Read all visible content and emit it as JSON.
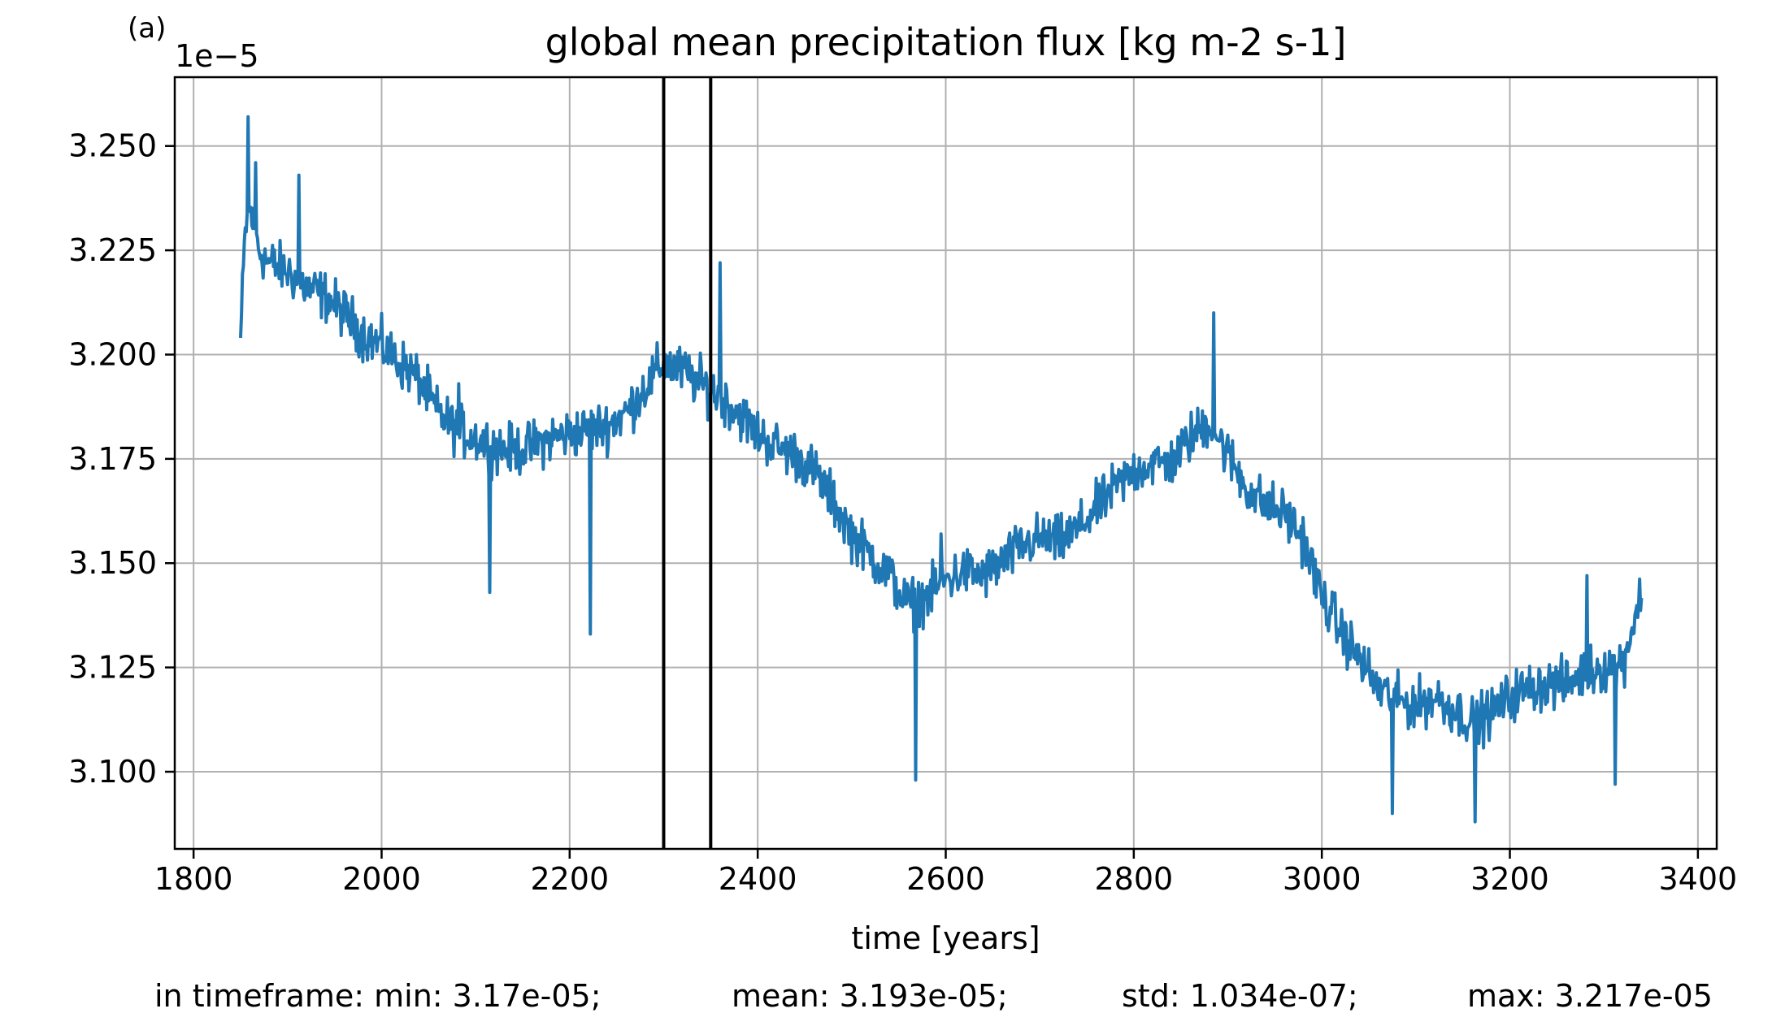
{
  "chart_data": {
    "type": "line",
    "panel_label": "(a)",
    "title": "global mean precipitation flux [kg m-2 s-1]",
    "xlabel": "time [years]",
    "ylabel": "",
    "y_offset_label": "1e−5",
    "xlim": [
      1780,
      3420
    ],
    "ylim": [
      3.0815,
      3.2665
    ],
    "xticks": [
      1800,
      2000,
      2200,
      2400,
      2600,
      2800,
      3000,
      3200,
      3400
    ],
    "yticks": [
      3.1,
      3.125,
      3.15,
      3.175,
      3.2,
      3.225,
      3.25
    ],
    "ytick_labels": [
      "3.100",
      "3.125",
      "3.150",
      "3.175",
      "3.200",
      "3.225",
      "3.250"
    ],
    "grid": true,
    "series_color": "#1f77b4",
    "vertical_markers": {
      "x": [
        2300,
        2350
      ],
      "color": "#000000"
    },
    "series": [
      {
        "name": "",
        "x_start": 1850,
        "x_end": 3340,
        "anchors": [
          [
            1850,
            3.204
          ],
          [
            1855,
            3.23
          ],
          [
            1860,
            3.235
          ],
          [
            1870,
            3.225
          ],
          [
            1880,
            3.222
          ],
          [
            1900,
            3.22
          ],
          [
            1920,
            3.216
          ],
          [
            1940,
            3.214
          ],
          [
            1960,
            3.21
          ],
          [
            1980,
            3.205
          ],
          [
            2000,
            3.202
          ],
          [
            2020,
            3.198
          ],
          [
            2040,
            3.194
          ],
          [
            2060,
            3.186
          ],
          [
            2080,
            3.182
          ],
          [
            2100,
            3.18
          ],
          [
            2120,
            3.178
          ],
          [
            2140,
            3.177
          ],
          [
            2160,
            3.178
          ],
          [
            2180,
            3.18
          ],
          [
            2200,
            3.181
          ],
          [
            2220,
            3.182
          ],
          [
            2240,
            3.183
          ],
          [
            2260,
            3.186
          ],
          [
            2280,
            3.192
          ],
          [
            2300,
            3.198
          ],
          [
            2320,
            3.196
          ],
          [
            2340,
            3.193
          ],
          [
            2360,
            3.19
          ],
          [
            2380,
            3.186
          ],
          [
            2400,
            3.181
          ],
          [
            2420,
            3.178
          ],
          [
            2440,
            3.176
          ],
          [
            2460,
            3.172
          ],
          [
            2480,
            3.165
          ],
          [
            2500,
            3.157
          ],
          [
            2520,
            3.152
          ],
          [
            2540,
            3.147
          ],
          [
            2560,
            3.14
          ],
          [
            2580,
            3.142
          ],
          [
            2600,
            3.146
          ],
          [
            2620,
            3.148
          ],
          [
            2640,
            3.147
          ],
          [
            2660,
            3.15
          ],
          [
            2680,
            3.154
          ],
          [
            2700,
            3.156
          ],
          [
            2720,
            3.155
          ],
          [
            2740,
            3.158
          ],
          [
            2760,
            3.163
          ],
          [
            2780,
            3.168
          ],
          [
            2800,
            3.172
          ],
          [
            2820,
            3.174
          ],
          [
            2840,
            3.174
          ],
          [
            2860,
            3.18
          ],
          [
            2880,
            3.184
          ],
          [
            2900,
            3.176
          ],
          [
            2920,
            3.168
          ],
          [
            2940,
            3.164
          ],
          [
            2960,
            3.162
          ],
          [
            2980,
            3.156
          ],
          [
            3000,
            3.142
          ],
          [
            3020,
            3.134
          ],
          [
            3040,
            3.127
          ],
          [
            3060,
            3.12
          ],
          [
            3080,
            3.117
          ],
          [
            3100,
            3.116
          ],
          [
            3120,
            3.118
          ],
          [
            3140,
            3.115
          ],
          [
            3160,
            3.112
          ],
          [
            3180,
            3.114
          ],
          [
            3200,
            3.118
          ],
          [
            3220,
            3.12
          ],
          [
            3240,
            3.121
          ],
          [
            3260,
            3.121
          ],
          [
            3280,
            3.124
          ],
          [
            3300,
            3.125
          ],
          [
            3320,
            3.126
          ],
          [
            3340,
            3.143
          ]
        ],
        "noise_amplitude": 0.0055,
        "extremes": [
          [
            1858,
            3.257
          ],
          [
            1866,
            3.246
          ],
          [
            1912,
            3.243
          ],
          [
            2082,
            3.193
          ],
          [
            2115,
            3.143
          ],
          [
            2222,
            3.133
          ],
          [
            2360,
            3.222
          ],
          [
            2568,
            3.098
          ],
          [
            2595,
            3.157
          ],
          [
            2885,
            3.21
          ],
          [
            3075,
            3.09
          ],
          [
            3163,
            3.088
          ],
          [
            3282,
            3.147
          ],
          [
            3312,
            3.097
          ]
        ]
      }
    ],
    "stats": {
      "min": "in timeframe: min: 3.17e-05;",
      "mean": "mean: 3.193e-05;",
      "std": "std: 1.034e-07;",
      "max": "max: 3.217e-05"
    }
  }
}
